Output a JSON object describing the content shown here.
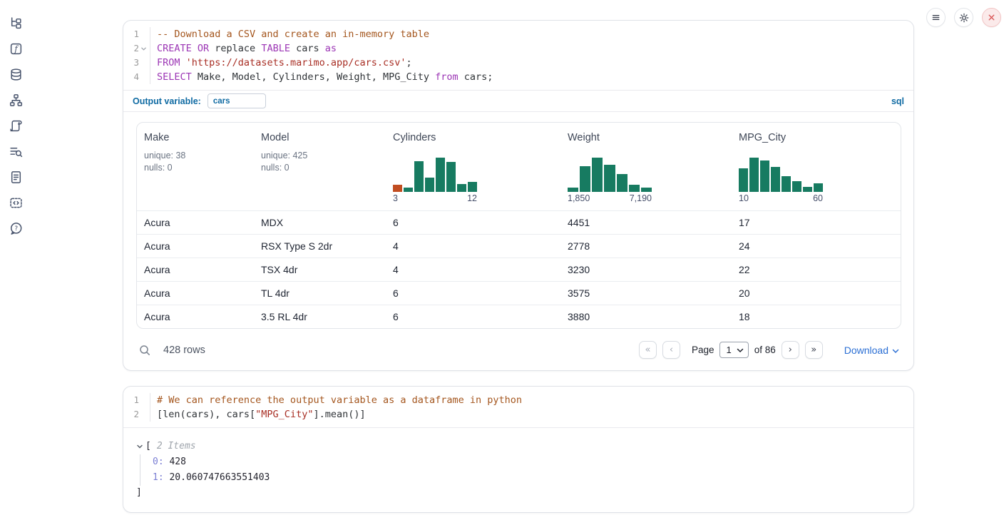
{
  "sidebar": {
    "items": [
      {
        "name": "file-explorer"
      },
      {
        "name": "variables"
      },
      {
        "name": "datasources"
      },
      {
        "name": "dependency-graph"
      },
      {
        "name": "scratchpad"
      },
      {
        "name": "logs"
      },
      {
        "name": "documentation"
      },
      {
        "name": "snippets"
      },
      {
        "name": "help"
      }
    ]
  },
  "topbar": {
    "buttons": [
      {
        "name": "menu",
        "icon": "hamburger-icon"
      },
      {
        "name": "settings",
        "icon": "gear-icon"
      },
      {
        "name": "shutdown",
        "icon": "close-icon",
        "color": "#d95656"
      }
    ]
  },
  "sql_cell": {
    "lines": [
      {
        "n": "1",
        "tok": [
          [
            "c",
            "-- Download a CSV and create an in-memory table"
          ]
        ]
      },
      {
        "n": "2",
        "fold": true,
        "tok": [
          [
            "k",
            "CREATE OR"
          ],
          [
            "p",
            " replace "
          ],
          [
            "k",
            "TABLE"
          ],
          [
            "p",
            " cars "
          ],
          [
            "k",
            "as"
          ]
        ]
      },
      {
        "n": "3",
        "tok": [
          [
            "k",
            "FROM"
          ],
          [
            "p",
            " "
          ],
          [
            "s",
            "'https://datasets.marimo.app/cars.csv'"
          ],
          [
            "p",
            ";"
          ]
        ]
      },
      {
        "n": "4",
        "tok": [
          [
            "k",
            "SELECT"
          ],
          [
            "p",
            " Make, Model, Cylinders, Weight, MPG_City "
          ],
          [
            "k",
            "from"
          ],
          [
            "p",
            " cars;"
          ]
        ]
      }
    ],
    "output_variable_label": "Output variable:",
    "output_variable_value": "cars",
    "language": "sql"
  },
  "table": {
    "columns": [
      {
        "label": "Make",
        "meta": [
          "unique: 38",
          "nulls: 0"
        ]
      },
      {
        "label": "Model",
        "meta": [
          "unique: 425",
          "nulls: 0"
        ]
      },
      {
        "label": "Cylinders",
        "hist": {
          "values": [
            0.2,
            0.12,
            0.9,
            0.42,
            1,
            0.88,
            0.22,
            0.3
          ],
          "colors": [
            "#c14d21"
          ],
          "min": "3",
          "max": "12"
        }
      },
      {
        "label": "Weight",
        "hist": {
          "values": [
            0.12,
            0.75,
            1,
            0.8,
            0.52,
            0.2,
            0.13
          ],
          "min": "1,850",
          "max": "7,190"
        }
      },
      {
        "label": "MPG_City",
        "hist": {
          "values": [
            0.68,
            1,
            0.92,
            0.72,
            0.45,
            0.32,
            0.15,
            0.25
          ],
          "min": "10",
          "max": "60"
        }
      }
    ],
    "rows": [
      [
        "Acura",
        "MDX",
        "6",
        "4451",
        "17"
      ],
      [
        "Acura",
        "RSX Type S 2dr",
        "4",
        "2778",
        "24"
      ],
      [
        "Acura",
        "TSX 4dr",
        "4",
        "3230",
        "22"
      ],
      [
        "Acura",
        "TL 4dr",
        "6",
        "3575",
        "20"
      ],
      [
        "Acura",
        "3.5 RL 4dr",
        "6",
        "3880",
        "18"
      ]
    ],
    "footer": {
      "rows_count": "428 rows",
      "page_label": "Page",
      "page_value": "1",
      "of_text": "of 86",
      "download_label": "Download"
    }
  },
  "python_cell": {
    "lines": [
      {
        "n": "1",
        "tok": [
          [
            "c",
            "# We can reference the output variable as a dataframe in python"
          ]
        ]
      },
      {
        "n": "2",
        "tok": [
          [
            "p",
            "[len(cars), cars["
          ],
          [
            "s",
            "\"MPG_City\""
          ],
          [
            "p",
            "].mean()]"
          ]
        ]
      }
    ]
  },
  "result_tree": {
    "open_bracket": "[",
    "items_label": "2 Items",
    "entries": [
      {
        "key": "0:",
        "value": "428"
      },
      {
        "key": "1:",
        "value": "20.060747663551403"
      }
    ],
    "close_bracket": "]"
  },
  "colors": {
    "accent_blue": "#106ba3",
    "link_blue": "#2b6fd4",
    "hist_green": "#177b61",
    "hist_orange": "#c14d21",
    "keyword_purple": "#9c36b5",
    "string_red": "#a82e24",
    "comment_brown": "#a4561e"
  },
  "chart_data": [
    {
      "type": "bar",
      "title": "Cylinders column histogram",
      "x_range_labels": [
        "3",
        "12"
      ],
      "values_normalized": [
        0.2,
        0.12,
        0.9,
        0.42,
        1,
        0.88,
        0.22,
        0.3
      ],
      "note": "first bar highlighted orange, rest green"
    },
    {
      "type": "bar",
      "title": "Weight column histogram",
      "x_range_labels": [
        "1,850",
        "7,190"
      ],
      "values_normalized": [
        0.12,
        0.75,
        1,
        0.8,
        0.52,
        0.2,
        0.13
      ]
    },
    {
      "type": "bar",
      "title": "MPG_City column histogram",
      "x_range_labels": [
        "10",
        "60"
      ],
      "values_normalized": [
        0.68,
        1,
        0.92,
        0.72,
        0.45,
        0.32,
        0.15,
        0.25
      ]
    }
  ]
}
